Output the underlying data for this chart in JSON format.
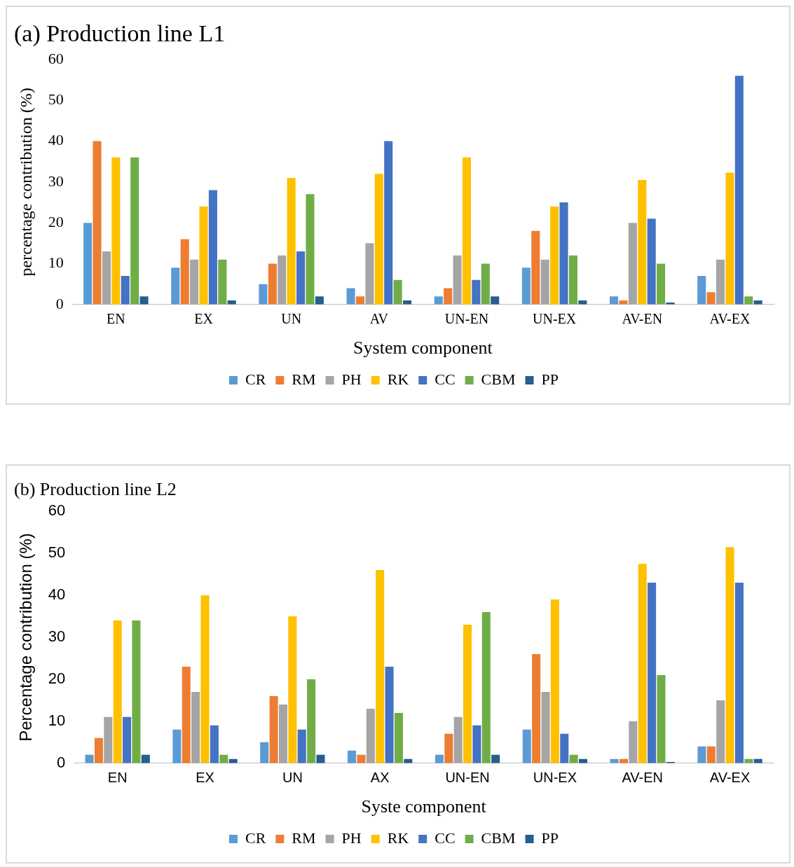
{
  "chart_data": [
    {
      "type": "bar",
      "title": "(a) Production line L1",
      "xlabel": "System component",
      "ylabel": "percentage contribution (%)",
      "categories": [
        "EN",
        "EX",
        "UN",
        "AV",
        "UN-EN",
        "UN-EX",
        "AV-EN",
        "AV-EX"
      ],
      "ylim": [
        0,
        60
      ],
      "yticks": [
        0,
        10,
        20,
        30,
        40,
        50,
        60
      ],
      "grid": false,
      "legend": "bottom",
      "series": [
        {
          "name": "CR",
          "color": "#5b9bd5",
          "values": [
            20,
            9,
            5,
            4,
            2,
            9,
            2,
            7
          ]
        },
        {
          "name": "RM",
          "color": "#ed7d31",
          "values": [
            40,
            16,
            10,
            2,
            4,
            18,
            1,
            3
          ]
        },
        {
          "name": "PH",
          "color": "#a5a5a5",
          "values": [
            13,
            11,
            12,
            15,
            12,
            11,
            20,
            11
          ]
        },
        {
          "name": "RK",
          "color": "#ffc000",
          "values": [
            36,
            24,
            31,
            32,
            36,
            24,
            30.5,
            32.3
          ]
        },
        {
          "name": "CC",
          "color": "#4472c4",
          "values": [
            7,
            28,
            13,
            40,
            6,
            25,
            21,
            56
          ]
        },
        {
          "name": "CBM",
          "color": "#70ad47",
          "values": [
            36,
            11,
            27,
            6,
            10,
            12,
            10,
            2
          ]
        },
        {
          "name": "PP",
          "color": "#255e91",
          "values": [
            2,
            1,
            2,
            1,
            2,
            1,
            0.5,
            1
          ]
        }
      ]
    },
    {
      "type": "bar",
      "title": "(b) Production line L2",
      "xlabel": "Syste component",
      "ylabel": "Percentage contribution (%)",
      "categories": [
        "EN",
        "EX",
        "UN",
        "AX",
        "UN-EN",
        "UN-EX",
        "AV-EN",
        "AV-EX"
      ],
      "ylim": [
        0,
        60
      ],
      "yticks": [
        0,
        10,
        20,
        30,
        40,
        50,
        60
      ],
      "grid": false,
      "legend": "bottom",
      "series": [
        {
          "name": "CR",
          "color": "#5b9bd5",
          "values": [
            2,
            8,
            5,
            3,
            2,
            8,
            1,
            4
          ]
        },
        {
          "name": "RM",
          "color": "#ed7d31",
          "values": [
            6,
            23,
            16,
            2,
            7,
            26,
            1,
            4
          ]
        },
        {
          "name": "PH",
          "color": "#a5a5a5",
          "values": [
            11,
            17,
            14,
            13,
            11,
            17,
            10,
            15
          ]
        },
        {
          "name": "RK",
          "color": "#ffc000",
          "values": [
            34,
            40,
            35,
            46,
            33,
            39,
            47.5,
            51.5
          ]
        },
        {
          "name": "CC",
          "color": "#4472c4",
          "values": [
            11,
            9,
            8,
            23,
            9,
            7,
            43,
            43
          ]
        },
        {
          "name": "CBM",
          "color": "#70ad47",
          "values": [
            34,
            2,
            20,
            12,
            36,
            2,
            21,
            1
          ]
        },
        {
          "name": "PP",
          "color": "#255e91",
          "values": [
            2,
            1,
            2,
            1,
            2,
            1,
            0.3,
            1
          ]
        }
      ]
    }
  ]
}
